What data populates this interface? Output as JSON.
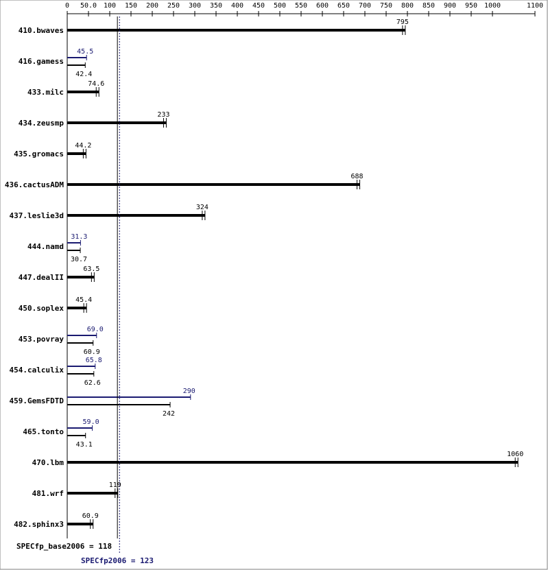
{
  "chart_data": {
    "type": "bar",
    "xlim": [
      0,
      1100
    ],
    "x_ticks": [
      0,
      50.0,
      100,
      150,
      200,
      250,
      300,
      350,
      400,
      450,
      500,
      550,
      600,
      650,
      700,
      750,
      800,
      850,
      900,
      950,
      1000,
      1100
    ],
    "x_tick_labels": [
      "0",
      "50.0",
      "100",
      "150",
      "200",
      "250",
      "300",
      "350",
      "400",
      "450",
      "500",
      "550",
      "600",
      "650",
      "700",
      "750",
      "800",
      "850",
      "900",
      "950",
      "1000",
      "1100"
    ],
    "categories": [
      "410.bwaves",
      "416.gamess",
      "433.milc",
      "434.zeusmp",
      "435.gromacs",
      "436.cactusADM",
      "437.leslie3d",
      "444.namd",
      "447.dealII",
      "450.soplex",
      "453.povray",
      "454.calculix",
      "459.GemsFDTD",
      "465.tonto",
      "470.lbm",
      "481.wrf",
      "482.sphinx3"
    ],
    "series": [
      {
        "name": "base",
        "values": [
          795,
          42.4,
          74.6,
          233,
          44.2,
          688,
          324,
          30.7,
          63.5,
          45.4,
          60.9,
          62.6,
          242,
          43.1,
          1060,
          119,
          60.9
        ],
        "labels": [
          "795",
          "42.4",
          "74.6",
          "233",
          "44.2",
          "688",
          "324",
          "30.7",
          "63.5",
          "45.4",
          "60.9",
          "62.6",
          "242",
          "43.1",
          "1060",
          "119",
          "60.9"
        ]
      },
      {
        "name": "peak",
        "values": [
          null,
          45.5,
          null,
          null,
          null,
          null,
          null,
          31.3,
          null,
          null,
          69.0,
          65.8,
          290,
          59.0,
          null,
          null,
          null
        ],
        "labels": [
          null,
          "45.5",
          null,
          null,
          null,
          null,
          null,
          "31.3",
          null,
          null,
          "69.0",
          "65.8",
          "290",
          "59.0",
          null,
          null,
          null
        ]
      }
    ],
    "reference_lines": [
      {
        "name": "base",
        "value": 118,
        "label": "SPECfp_base2006 = 118"
      },
      {
        "name": "peak",
        "value": 123,
        "label": "SPECfp2006 = 123"
      }
    ],
    "colors": {
      "base": "#000000",
      "peak": "#191970",
      "axis": "#000000"
    },
    "grid": false
  }
}
